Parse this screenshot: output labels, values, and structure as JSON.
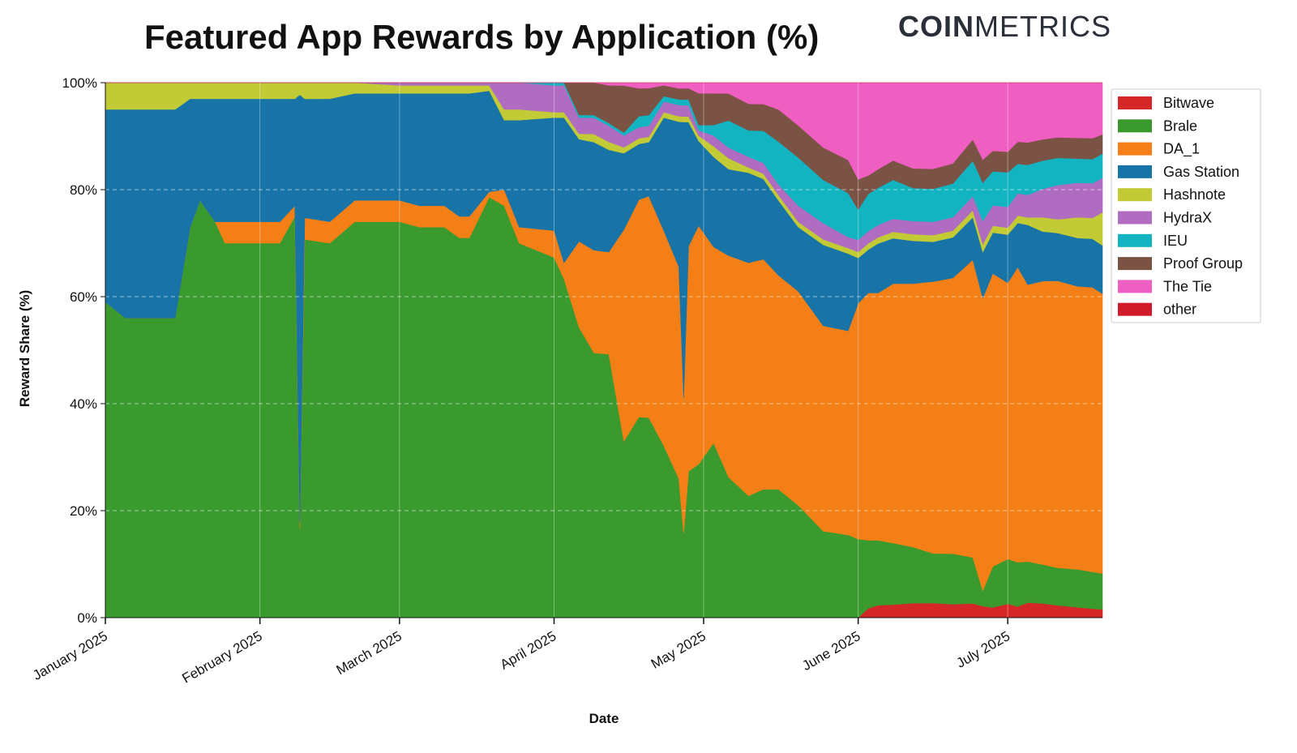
{
  "title": "Featured App Rewards by Application (%)",
  "brand": {
    "bold": "COIN",
    "light": "METRICS"
  },
  "chart_data": {
    "type": "area",
    "stacked": true,
    "title": "Featured App Rewards by Application (%)",
    "xlabel": "Date",
    "ylabel": "Reward Share (%)",
    "ylim": [
      0,
      100
    ],
    "y_ticks": [
      "0%",
      "20%",
      "40%",
      "60%",
      "80%",
      "100%"
    ],
    "x_ticks": [
      "January 2025",
      "February 2025",
      "March 2025",
      "April 2025",
      "May 2025",
      "June 2025",
      "July 2025"
    ],
    "x_tick_days": [
      0,
      31,
      59,
      90,
      120,
      151,
      181
    ],
    "x_range_days": [
      0,
      200
    ],
    "grid": true,
    "legend_position": "right",
    "legend": [
      "Bitwave",
      "Brale",
      "DA_1",
      "Gas Station",
      "Hashnote",
      "HydraX",
      "IEU",
      "Proof Group",
      "The Tie",
      "other"
    ],
    "colors": {
      "Bitwave": "#d62728",
      "Brale": "#3a9a2d",
      "DA_1": "#f57f17",
      "Gas Station": "#1874a6",
      "Hashnote": "#c2ca35",
      "HydraX": "#b06cc0",
      "IEU": "#12b4c2",
      "Proof Group": "#7b5344",
      "The Tie": "#ee5fc1",
      "other": "#d01c2a"
    },
    "x": [
      "2025-01-01",
      "2025-01-05",
      "2025-01-12",
      "2025-01-15",
      "2025-01-18",
      "2025-01-20",
      "2025-01-23",
      "2025-01-25",
      "2025-02-01",
      "2025-02-05",
      "2025-02-08",
      "2025-02-09",
      "2025-02-10",
      "2025-02-15",
      "2025-02-20",
      "2025-03-01",
      "2025-03-05",
      "2025-03-10",
      "2025-03-13",
      "2025-03-15",
      "2025-03-19",
      "2025-03-22",
      "2025-03-25",
      "2025-04-01",
      "2025-04-03",
      "2025-04-06",
      "2025-04-09",
      "2025-04-12",
      "2025-04-15",
      "2025-04-18",
      "2025-04-20",
      "2025-04-23",
      "2025-04-26",
      "2025-04-27",
      "2025-04-28",
      "2025-04-30",
      "2025-05-03",
      "2025-05-06",
      "2025-05-10",
      "2025-05-13",
      "2025-05-16",
      "2025-05-20",
      "2025-05-25",
      "2025-05-30",
      "2025-06-01",
      "2025-06-03",
      "2025-06-05",
      "2025-06-08",
      "2025-06-12",
      "2025-06-16",
      "2025-06-20",
      "2025-06-24",
      "2025-06-26",
      "2025-06-28",
      "2025-07-01",
      "2025-07-03",
      "2025-07-05",
      "2025-07-08",
      "2025-07-11",
      "2025-07-15",
      "2025-07-18",
      "2025-07-20"
    ],
    "series": [
      {
        "name": "Bitwave",
        "values": [
          0,
          0,
          0,
          0,
          0,
          0,
          0,
          0,
          0,
          0,
          0,
          0,
          0,
          0,
          0,
          0,
          0,
          0,
          0,
          0,
          0,
          0,
          0,
          0,
          0,
          0,
          0,
          0,
          0,
          0,
          0,
          0,
          0,
          0,
          0,
          0,
          0,
          0,
          0,
          0,
          0,
          0,
          0,
          0,
          0,
          1.5,
          2,
          2,
          2.2,
          2.2,
          2,
          2,
          1.5,
          1.5,
          2,
          1.5,
          2,
          2,
          1.8,
          1.5,
          1.3,
          1.2
        ]
      },
      {
        "name": "Brale",
        "values": [
          59,
          56,
          56,
          56,
          73,
          78,
          74,
          70,
          70,
          70,
          75,
          15,
          70,
          70,
          74,
          74,
          73,
          73,
          71,
          71,
          79,
          77,
          70,
          67,
          63,
          54,
          49,
          49,
          30,
          36,
          37,
          32,
          25,
          15,
          26,
          29,
          33,
          26,
          23,
          24,
          24,
          21,
          16,
          15,
          13,
          11,
          10.5,
          9.5,
          8.5,
          7.5,
          7.5,
          6.5,
          2,
          6,
          6.5,
          6,
          5.5,
          5.5,
          5.5,
          5.5,
          5.3,
          5.2
        ]
      },
      {
        "name": "DA_1",
        "values": [
          0,
          0,
          0,
          0,
          0,
          0,
          0,
          4,
          4,
          4,
          2,
          1,
          4,
          4,
          4,
          4,
          4,
          4,
          4,
          4,
          1,
          3,
          3,
          5,
          3,
          16,
          19,
          19,
          36,
          39,
          41,
          40,
          38,
          24,
          40,
          45,
          37,
          41,
          44,
          43,
          40,
          40,
          38,
          37,
          39,
          40,
          40,
          40,
          40,
          41,
          41,
          42,
          38,
          43,
          40,
          40,
          37,
          40,
          42,
          41,
          41,
          40.6
        ]
      },
      {
        "name": "Gas Station",
        "values": [
          36,
          39,
          39,
          39,
          24,
          19,
          23,
          23,
          23,
          23,
          20,
          72,
          22,
          23,
          20,
          20,
          21,
          21,
          23,
          23,
          19,
          13,
          20,
          21,
          27,
          19,
          20,
          19,
          13,
          10,
          10,
          21,
          26,
          49,
          22,
          16,
          17,
          16,
          17,
          15,
          14,
          12,
          15,
          14,
          7.5,
          7,
          8,
          7,
          6.5,
          6,
          6,
          6,
          6,
          6,
          7,
          6,
          8,
          7,
          7,
          7,
          7,
          7
        ]
      },
      {
        "name": "Hashnote",
        "values": [
          5,
          5,
          5,
          5,
          3,
          3,
          3,
          3,
          3,
          3,
          3,
          2,
          3,
          3,
          2,
          1.5,
          1.5,
          1.5,
          1.5,
          1.5,
          1,
          2,
          2,
          1,
          1,
          1,
          1.5,
          1.5,
          1,
          1,
          1,
          1,
          1,
          1,
          1,
          1,
          2,
          2,
          1,
          1,
          1,
          1,
          1,
          1,
          1,
          1,
          1,
          1,
          1,
          1,
          1,
          1,
          1,
          1,
          1,
          1,
          1,
          2,
          2,
          3,
          3,
          4.8
        ]
      },
      {
        "name": "HydraX",
        "values": [
          0,
          0,
          0,
          0,
          0,
          0,
          0,
          0,
          0,
          0,
          0,
          0,
          0,
          0,
          0,
          0.5,
          0.5,
          0.5,
          0.5,
          0.5,
          0.5,
          5,
          5,
          5,
          5,
          3,
          3,
          3,
          2,
          2,
          2,
          2,
          2,
          2,
          2,
          1,
          2,
          2,
          2,
          2,
          2,
          3,
          3,
          2,
          2,
          2,
          2,
          2,
          2,
          2,
          2,
          2,
          3,
          3,
          3,
          3,
          3,
          4,
          5,
          5,
          5,
          5
        ]
      },
      {
        "name": "IEU",
        "values": [
          0,
          0,
          0,
          0,
          0,
          0,
          0,
          0,
          0,
          0,
          0,
          0,
          0,
          0,
          0,
          0,
          0,
          0,
          0,
          0,
          0,
          0,
          0,
          0.5,
          0.5,
          0.5,
          0.5,
          0.5,
          0.5,
          2,
          2,
          1,
          1,
          1,
          1,
          1,
          2,
          5,
          5,
          6,
          8,
          9,
          8,
          8,
          5,
          6,
          6,
          6,
          5,
          5,
          5,
          5,
          5,
          5,
          5,
          4,
          4,
          4,
          4,
          3.5,
          3.5,
          3.5
        ]
      },
      {
        "name": "Proof Group",
        "values": [
          0,
          0,
          0,
          0,
          0,
          0,
          0,
          0,
          0,
          0,
          0,
          0,
          0,
          0,
          0,
          0,
          0,
          0,
          0,
          0,
          0,
          0,
          0,
          0,
          0,
          6,
          6,
          7,
          8,
          5,
          5,
          2,
          2,
          2,
          2,
          6,
          6,
          5,
          5,
          5,
          6,
          6,
          6,
          6,
          5,
          3,
          3,
          3,
          3,
          3,
          3,
          3,
          3,
          3,
          3,
          3,
          3,
          3,
          3,
          3,
          3,
          2.8
        ]
      },
      {
        "name": "The Tie",
        "values": [
          0,
          0,
          0,
          0,
          0,
          0,
          0,
          0,
          0,
          0,
          0,
          0,
          0,
          0,
          0,
          0,
          0,
          0,
          0,
          0,
          0,
          0,
          0,
          0,
          0,
          0,
          0,
          0.5,
          0.5,
          1,
          1,
          0.5,
          1,
          1,
          1,
          2,
          2,
          2,
          4,
          4,
          5,
          8,
          12,
          14,
          16,
          15,
          14,
          12,
          13,
          13,
          12,
          8,
          10,
          10,
          10,
          8,
          8,
          8,
          8,
          8,
          8,
          7.5
        ]
      },
      {
        "name": "other",
        "values": [
          0,
          0,
          0,
          0,
          0,
          0,
          0,
          0,
          0,
          0,
          0,
          0,
          0,
          0,
          0,
          0,
          0,
          0,
          0,
          0,
          0,
          0,
          0,
          0,
          0,
          0,
          0,
          0,
          0,
          0,
          0,
          0,
          0,
          0,
          0,
          0,
          0,
          0,
          0,
          0,
          0,
          0,
          0,
          0,
          0,
          0,
          0,
          0,
          0,
          0,
          0,
          0,
          0,
          0,
          0,
          0,
          0,
          0,
          0,
          0,
          0,
          0
        ]
      }
    ]
  }
}
